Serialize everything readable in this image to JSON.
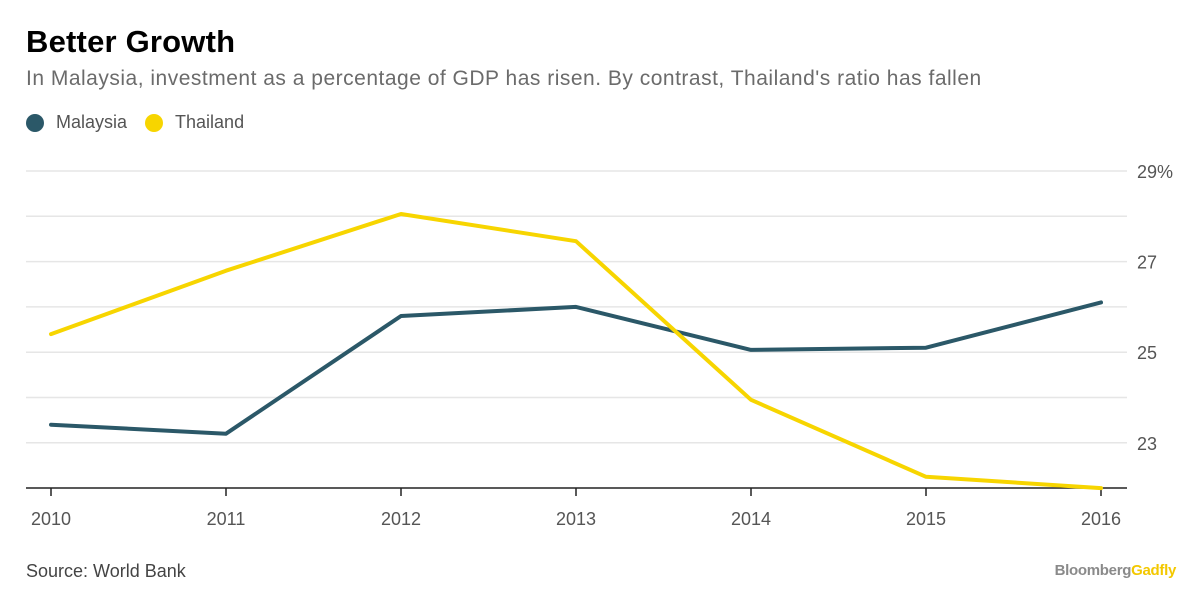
{
  "header": {
    "title": "Better Growth",
    "subtitle": "In Malaysia, investment as a percentage of GDP has risen. By contrast, Thailand's ratio has fallen"
  },
  "footer": {
    "source": "Source: World Bank",
    "brand_part1": "Bloomberg",
    "brand_part2": "Gadfly"
  },
  "colors": {
    "malaysia": "#2b5868",
    "thailand": "#f7d500",
    "grid": "#e6e6e6",
    "axis": "#222222"
  },
  "chart_data": {
    "type": "line",
    "title": "Better Growth",
    "subtitle": "In Malaysia, investment as a percentage of GDP has risen. By contrast, Thailand's ratio has fallen",
    "xlabel": "",
    "ylabel": "",
    "x": [
      "2010",
      "2011",
      "2012",
      "2013",
      "2014",
      "2015",
      "2016"
    ],
    "series": [
      {
        "name": "Malaysia",
        "color": "#2b5868",
        "values": [
          23.4,
          23.2,
          25.8,
          26.0,
          25.05,
          25.1,
          26.1
        ]
      },
      {
        "name": "Thailand",
        "color": "#f7d500",
        "values": [
          25.4,
          26.8,
          28.05,
          27.45,
          23.95,
          22.25,
          22.0
        ]
      }
    ],
    "ylim": [
      22.0,
      29.5
    ],
    "y_ticks": [
      {
        "value": 29,
        "label": "29%"
      },
      {
        "value": 27,
        "label": "27"
      },
      {
        "value": 25,
        "label": "25"
      },
      {
        "value": 23,
        "label": "23"
      }
    ],
    "y_gridlines": [
      23,
      24,
      25,
      26,
      27,
      28,
      29
    ],
    "y_axis_side": "right",
    "legend_placement": "top-left",
    "grid": true
  }
}
